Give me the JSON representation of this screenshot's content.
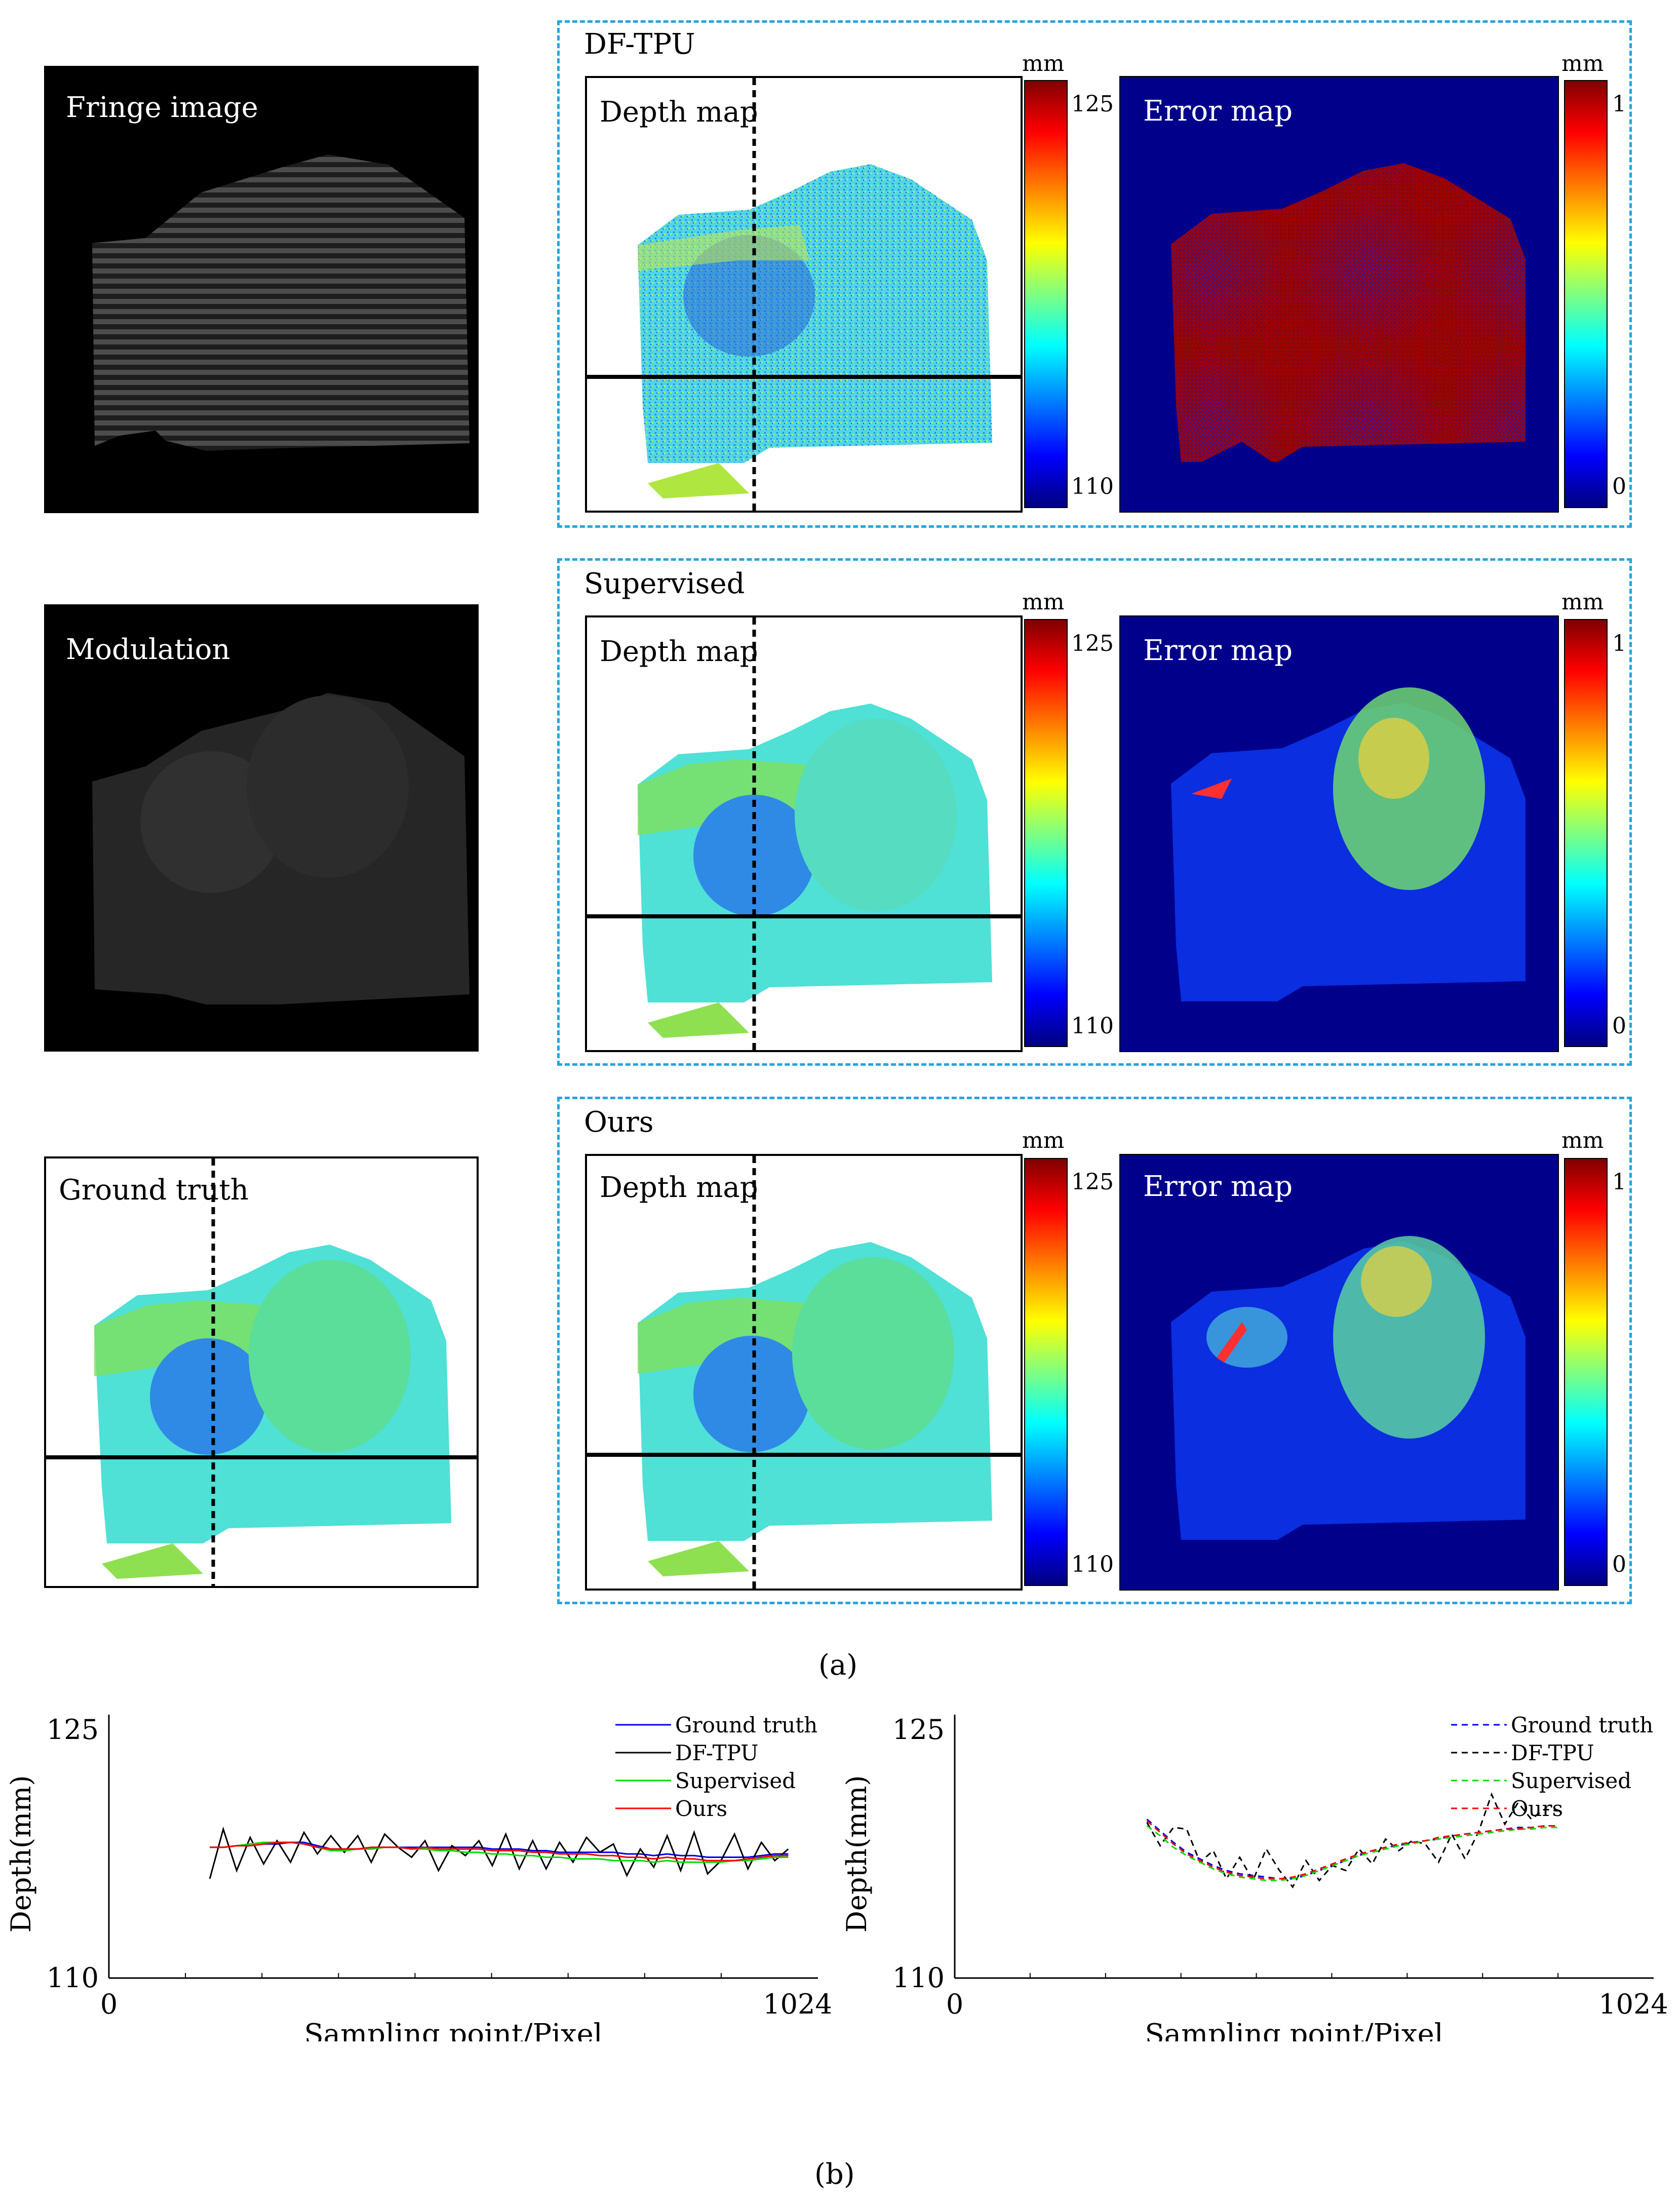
{
  "row1": {
    "left_image_label": "Fringe image",
    "group_title": "DF-TPU",
    "depth_label": "Depth map",
    "error_label": "Error map"
  },
  "row2": {
    "left_image_label": "Modulation",
    "group_title": "Supervised",
    "depth_label": "Depth map",
    "error_label": "Error map"
  },
  "row3": {
    "left_image_label": "Ground truth",
    "group_title": "Ours",
    "depth_label": "Depth map",
    "error_label": "Error map"
  },
  "colorbars": {
    "unit": "mm",
    "depth_max": "125",
    "depth_min": "110",
    "error_max": "1",
    "error_min": "0"
  },
  "caption_a": "(a)",
  "caption_b": "(b)",
  "colors": {
    "dash_border": "#29a3e0",
    "error_bg": "#00008b",
    "ground_truth": "#0000ff",
    "df_tpu": "#000000",
    "supervised": "#00dd00",
    "ours": "#ff0000"
  },
  "chart_data": [
    {
      "type": "line",
      "title": "",
      "xlabel": "Sampling point/Pixel",
      "ylabel": "Depth(mm)",
      "xlim": [
        0,
        1024
      ],
      "ylim": [
        110,
        125
      ],
      "x_tick_labels": [
        "0",
        "1024"
      ],
      "y_tick_labels": [
        "125",
        "110"
      ],
      "legend_position": "top-right",
      "line_style": "solid",
      "x": [
        150,
        170,
        190,
        210,
        230,
        250,
        270,
        290,
        310,
        330,
        350,
        370,
        390,
        410,
        430,
        450,
        470,
        490,
        510,
        530,
        550,
        570,
        590,
        610,
        630,
        650,
        670,
        690,
        710,
        730,
        750,
        770,
        790,
        810,
        830,
        850,
        870,
        890,
        910,
        930,
        950,
        970,
        990,
        1010
      ],
      "series": [
        {
          "name": "Ground truth",
          "values": [
            117.9,
            117.9,
            118.0,
            118.0,
            118.1,
            118.1,
            118.2,
            118.2,
            118.0,
            117.8,
            117.8,
            117.8,
            117.9,
            117.9,
            117.9,
            117.9,
            117.9,
            117.9,
            117.9,
            117.9,
            117.9,
            117.8,
            117.8,
            117.8,
            117.7,
            117.7,
            117.6,
            117.6,
            117.6,
            117.6,
            117.6,
            117.5,
            117.5,
            117.4,
            117.5,
            117.4,
            117.4,
            117.3,
            117.3,
            117.3,
            117.3,
            117.4,
            117.5,
            117.5
          ]
        },
        {
          "name": "DF-TPU",
          "values": [
            116.0,
            119.0,
            116.5,
            118.5,
            116.9,
            118.3,
            117.0,
            118.8,
            117.5,
            118.6,
            117.6,
            118.6,
            117.0,
            118.7,
            117.9,
            117.3,
            118.3,
            116.5,
            118.0,
            117.4,
            118.3,
            116.8,
            118.7,
            116.6,
            118.3,
            116.6,
            118.2,
            117.0,
            118.5,
            117.6,
            118.1,
            116.2,
            117.8,
            116.7,
            118.6,
            116.5,
            118.8,
            116.3,
            117.1,
            118.7,
            116.6,
            118.2,
            117.1,
            117.8
          ]
        },
        {
          "name": "Supervised",
          "values": [
            117.9,
            117.9,
            118.0,
            118.1,
            118.2,
            118.2,
            118.2,
            118.1,
            117.9,
            117.7,
            117.7,
            117.8,
            117.8,
            117.9,
            117.9,
            117.8,
            117.8,
            117.7,
            117.7,
            117.6,
            117.6,
            117.5,
            117.5,
            117.4,
            117.4,
            117.3,
            117.3,
            117.2,
            117.2,
            117.2,
            117.1,
            117.1,
            117.1,
            117.0,
            117.1,
            117.0,
            117.0,
            117.0,
            117.0,
            117.1,
            117.1,
            117.2,
            117.3,
            117.3
          ]
        },
        {
          "name": "Ours",
          "values": [
            117.9,
            117.9,
            118.0,
            118.0,
            118.1,
            118.2,
            118.2,
            118.1,
            117.9,
            117.8,
            117.8,
            117.8,
            117.9,
            117.9,
            117.9,
            117.8,
            117.9,
            117.8,
            117.8,
            117.8,
            117.8,
            117.7,
            117.7,
            117.7,
            117.6,
            117.6,
            117.5,
            117.5,
            117.5,
            117.4,
            117.4,
            117.3,
            117.3,
            117.2,
            117.3,
            117.2,
            117.2,
            117.1,
            117.1,
            117.1,
            117.2,
            117.3,
            117.4,
            117.4
          ]
        }
      ]
    },
    {
      "type": "line",
      "title": "",
      "xlabel": "Sampling point/Pixel",
      "ylabel": "Depth(mm)",
      "xlim": [
        0,
        1024
      ],
      "ylim": [
        110,
        125
      ],
      "x_tick_labels": [
        "0",
        "1024"
      ],
      "y_tick_labels": [
        "125",
        "110"
      ],
      "legend_position": "top-right",
      "line_style": "dashed",
      "x": [
        290,
        310,
        330,
        350,
        370,
        390,
        410,
        430,
        450,
        470,
        490,
        510,
        530,
        550,
        570,
        590,
        610,
        630,
        650,
        670,
        690,
        710,
        730,
        750,
        770,
        790,
        810,
        830,
        850,
        870,
        890,
        910
      ],
      "series": [
        {
          "name": "Ground truth",
          "values": [
            119.6,
            118.9,
            118.2,
            117.6,
            117.2,
            116.8,
            116.5,
            116.3,
            116.2,
            116.1,
            116.0,
            116.0,
            116.2,
            116.5,
            116.8,
            117.1,
            117.4,
            117.7,
            117.9,
            118.0,
            118.2,
            118.3,
            118.4,
            118.6,
            118.7,
            118.8,
            118.9,
            119.0,
            119.1,
            119.1,
            119.2,
            119.2
          ]
        },
        {
          "name": "DF-TPU",
          "values": [
            119.4,
            118.0,
            119.1,
            119.0,
            117.0,
            117.7,
            116.0,
            117.3,
            115.9,
            117.8,
            116.5,
            115.5,
            117.1,
            115.9,
            116.8,
            116.5,
            117.8,
            116.9,
            118.4,
            117.7,
            118.3,
            118.1,
            117.0,
            118.7,
            117.2,
            118.8,
            121.1,
            119.3,
            120.6,
            119.6,
            120.2,
            120.1
          ]
        },
        {
          "name": "Supervised",
          "values": [
            119.2,
            118.6,
            117.9,
            117.4,
            117.0,
            116.6,
            116.3,
            116.1,
            116.0,
            115.9,
            115.9,
            116.0,
            116.2,
            116.5,
            116.8,
            117.1,
            117.4,
            117.6,
            117.8,
            118.0,
            118.1,
            118.3,
            118.4,
            118.5,
            118.6,
            118.7,
            118.8,
            118.9,
            119.0,
            119.0,
            119.1,
            119.1
          ]
        },
        {
          "name": "Ours",
          "values": [
            119.5,
            118.8,
            118.1,
            117.5,
            117.1,
            116.7,
            116.4,
            116.2,
            116.1,
            116.0,
            116.0,
            116.1,
            116.3,
            116.6,
            116.9,
            117.2,
            117.5,
            117.7,
            117.9,
            118.1,
            118.2,
            118.3,
            118.5,
            118.6,
            118.7,
            118.8,
            118.9,
            119.0,
            119.0,
            119.1,
            119.2,
            119.2
          ]
        }
      ]
    }
  ]
}
